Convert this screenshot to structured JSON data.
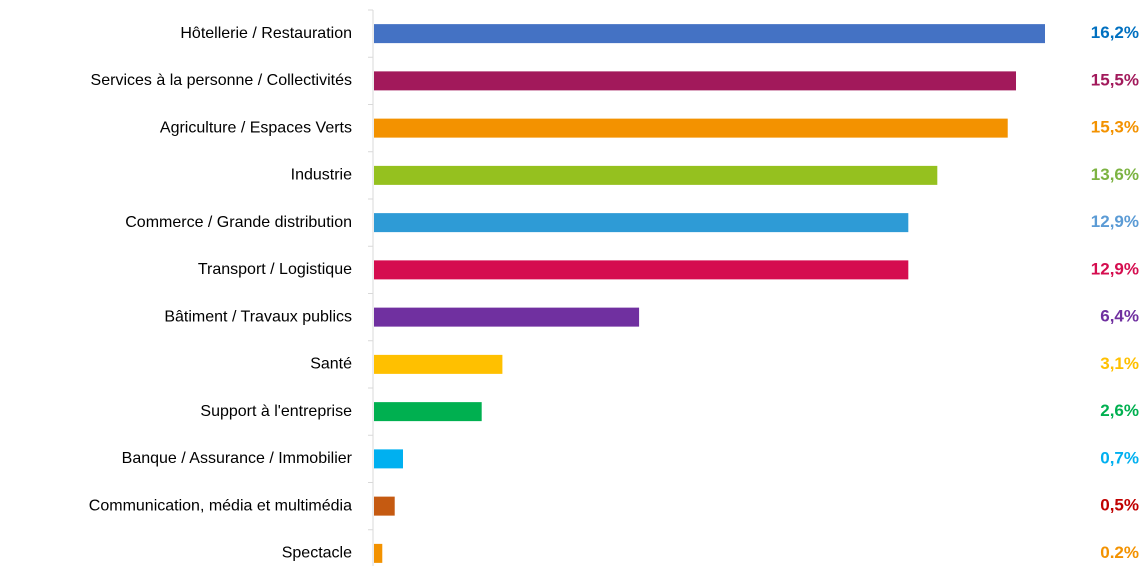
{
  "chart_data": {
    "type": "bar",
    "orientation": "horizontal",
    "categories": [
      "Hôtellerie / Restauration",
      "Services à la personne / Collectivités",
      "Agriculture / Espaces Verts",
      "Industrie",
      "Commerce / Grande distribution",
      "Transport / Logistique",
      "Bâtiment / Travaux publics",
      "Santé",
      "Support à l'entreprise",
      "Banque / Assurance / Immobilier",
      "Communication, média et multimédia",
      "Spectacle"
    ],
    "values": [
      16.2,
      15.5,
      15.3,
      13.6,
      12.9,
      12.9,
      6.4,
      3.1,
      2.6,
      0.7,
      0.5,
      0.2
    ],
    "value_labels": [
      "16,2%",
      "15,5%",
      "15,3%",
      "13,6%",
      "12,9%",
      "12,9%",
      "6,4%",
      "3,1%",
      "2,6%",
      "0,7%",
      "0,5%",
      "0.2%"
    ],
    "colors": [
      "#4472c4",
      "#a2195b",
      "#f39200",
      "#95c11f",
      "#2e9bd6",
      "#d50d4f",
      "#7030a0",
      "#ffc000",
      "#00b050",
      "#00b0f0",
      "#c55a11",
      "#f39200"
    ],
    "label_colors": [
      "#0070c0",
      "#a2195b",
      "#f39200",
      "#7cb342",
      "#5b9bd5",
      "#d50d4f",
      "#7030a0",
      "#ffc000",
      "#00b050",
      "#00b0f0",
      "#c00000",
      "#f39200"
    ]
  }
}
